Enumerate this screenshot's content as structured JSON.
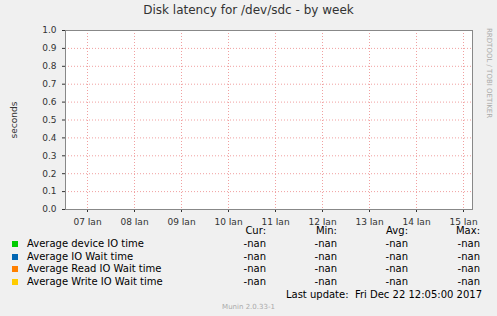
{
  "chart_data": {
    "type": "line",
    "title": "Disk latency for /dev/sdc - by week",
    "y_label": "seconds",
    "categories": [
      "07 Jan",
      "08 Jan",
      "09 Jan",
      "10 Jan",
      "11 Jan",
      "12 Jan",
      "13 Jan",
      "14 Jan",
      "15 Jan"
    ],
    "ylim": [
      0,
      1
    ],
    "yticks": [
      {
        "value": 0,
        "label": "0.0"
      },
      0.1,
      0.2,
      0.3,
      0.4,
      0.5,
      0.6,
      0.7,
      0.8,
      0.9,
      {
        "value": 1,
        "label": "1.0"
      }
    ],
    "grid": true,
    "legend": "bottom",
    "series": [
      {
        "name": "Average device IO time",
        "color": "#00cc00",
        "values": [
          null,
          null,
          null,
          null,
          null,
          null,
          null,
          null,
          null
        ],
        "stats": [
          "-nan",
          "-nan",
          "-nan",
          "-nan"
        ]
      },
      {
        "name": "Average IO Wait time",
        "color": "#0066b3",
        "values": [
          null,
          null,
          null,
          null,
          null,
          null,
          null,
          null,
          null
        ],
        "stats": [
          "-nan",
          "-nan",
          "-nan",
          "-nan"
        ]
      },
      {
        "name": "Average Read IO Wait time",
        "color": "#ff8000",
        "values": [
          null,
          null,
          null,
          null,
          null,
          null,
          null,
          null,
          null
        ],
        "stats": [
          "-nan",
          "-nan",
          "-nan",
          "-nan"
        ]
      },
      {
        "name": "Average Write IO Wait time",
        "color": "#ffcc00",
        "values": [
          null,
          null,
          null,
          null,
          null,
          null,
          null,
          null,
          null
        ],
        "stats": [
          "-nan",
          "-nan",
          "-nan",
          "-nan"
        ]
      }
    ],
    "stats_columns": [
      "Cur:",
      "Min:",
      "Avg:",
      "Max:"
    ],
    "footer": "Last update:  Fri Dec 22 12:05:00 2017",
    "version": "Munin 2.0.33-1",
    "watermark": "RRDTOOL / TOBI OETIKER"
  }
}
